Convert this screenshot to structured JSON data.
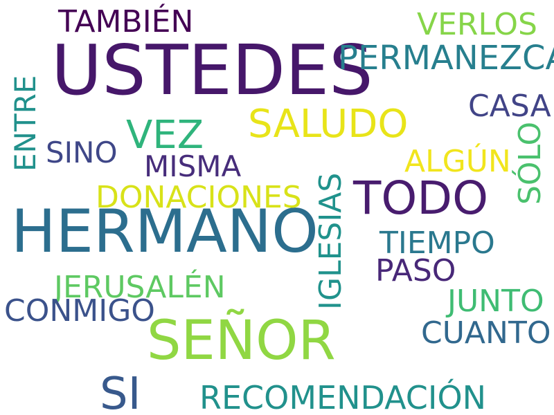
{
  "word_cloud": {
    "words": [
      {
        "text": "USTEDES",
        "color": "#46176a"
      },
      {
        "text": "HERMANO",
        "color": "#2c6e8e"
      },
      {
        "text": "SEÑOR",
        "color": "#90d743"
      },
      {
        "text": "TODO",
        "color": "#481c6e"
      },
      {
        "text": "SI",
        "color": "#38598c"
      },
      {
        "text": "SALUDO",
        "color": "#e8e419"
      },
      {
        "text": "VEZ",
        "color": "#2fb47c"
      },
      {
        "text": "PERMANEZCA",
        "color": "#277f8e"
      },
      {
        "text": "TAMBIÉN",
        "color": "#440154"
      },
      {
        "text": "VERLOS",
        "color": "#86d549"
      },
      {
        "text": "CASA",
        "color": "#414487"
      },
      {
        "text": "SINO",
        "color": "#3f4788"
      },
      {
        "text": "MISMA",
        "color": "#472d7b"
      },
      {
        "text": "DONACIONES",
        "color": "#d8e219"
      },
      {
        "text": "ALGÚN",
        "color": "#f1e51d"
      },
      {
        "text": "TIEMPO",
        "color": "#2a788e"
      },
      {
        "text": "PASO",
        "color": "#482878"
      },
      {
        "text": "JERUSALÉN",
        "color": "#5ec962"
      },
      {
        "text": "CONMIGO",
        "color": "#3b528b"
      },
      {
        "text": "JUNTO",
        "color": "#3fbc73"
      },
      {
        "text": "CUANTO",
        "color": "#31688e"
      },
      {
        "text": "RECOMENDACIÓN",
        "color": "#21918c"
      },
      {
        "text": "ENTRE",
        "color": "#21918c"
      },
      {
        "text": "IGLESIAS",
        "color": "#20928c"
      },
      {
        "text": "SÓLO",
        "color": "#4ac16d"
      }
    ]
  }
}
